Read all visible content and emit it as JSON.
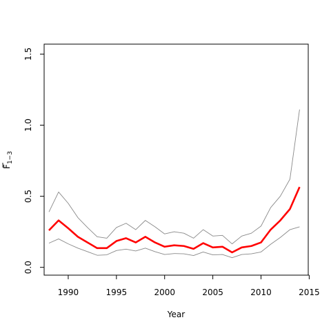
{
  "chart_data": {
    "type": "line",
    "xlabel": "Year",
    "ylabel": "F",
    "ylabel_sub": "1−3",
    "xlim": [
      1987.5,
      2014.9
    ],
    "ylim": [
      -0.055,
      1.57
    ],
    "x_ticks": [
      1990,
      1995,
      2000,
      2005,
      2010,
      2015
    ],
    "y_ticks": [
      0.0,
      0.5,
      1.0,
      1.5
    ],
    "y_tick_labels": [
      "0.0",
      "0.5",
      "1.0",
      "1.5"
    ],
    "grid": false,
    "x": [
      1988,
      1989,
      1990,
      1991,
      1992,
      1993,
      1994,
      1995,
      1996,
      1997,
      1998,
      1999,
      2000,
      2001,
      2002,
      2003,
      2004,
      2005,
      2006,
      2007,
      2008,
      2009,
      2010,
      2011,
      2012,
      2013,
      2014
    ],
    "series": [
      {
        "role": "upper",
        "color": "#888888",
        "values": [
          0.39,
          0.53,
          0.45,
          0.35,
          0.28,
          0.215,
          0.205,
          0.28,
          0.31,
          0.265,
          0.33,
          0.285,
          0.235,
          0.25,
          0.24,
          0.205,
          0.265,
          0.22,
          0.225,
          0.165,
          0.22,
          0.24,
          0.29,
          0.42,
          0.5,
          0.62,
          1.11
        ]
      },
      {
        "role": "estimate",
        "color": "#ff0000",
        "values": [
          0.26,
          0.33,
          0.275,
          0.215,
          0.175,
          0.135,
          0.135,
          0.185,
          0.205,
          0.175,
          0.215,
          0.175,
          0.145,
          0.155,
          0.15,
          0.13,
          0.17,
          0.14,
          0.145,
          0.105,
          0.14,
          0.15,
          0.175,
          0.265,
          0.33,
          0.41,
          0.565
        ]
      },
      {
        "role": "lower",
        "color": "#888888",
        "values": [
          0.17,
          0.2,
          0.165,
          0.135,
          0.11,
          0.085,
          0.088,
          0.118,
          0.128,
          0.115,
          0.135,
          0.11,
          0.09,
          0.097,
          0.095,
          0.083,
          0.108,
          0.088,
          0.09,
          0.068,
          0.09,
          0.095,
          0.108,
          0.162,
          0.21,
          0.265,
          0.285
        ]
      }
    ]
  }
}
